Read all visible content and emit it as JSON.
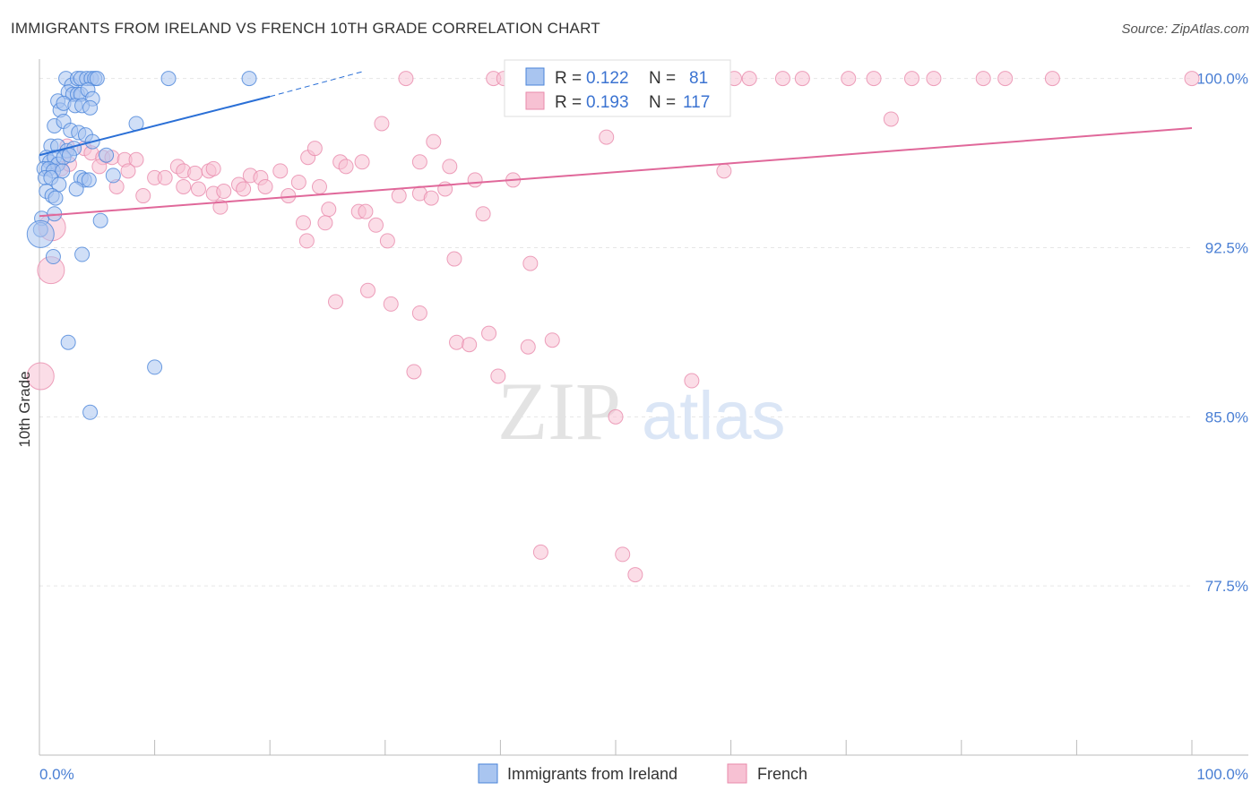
{
  "header": {
    "title": "IMMIGRANTS FROM IRELAND VS FRENCH 10TH GRADE CORRELATION CHART",
    "source": "Source: ZipAtlas.com"
  },
  "watermark": {
    "zip": "ZIP",
    "atlas": "atlas"
  },
  "legend": {
    "items": [
      {
        "r_label": "R =",
        "r_value": "0.122",
        "n_label": "N =",
        "n_value": "81"
      },
      {
        "r_label": "R =",
        "r_value": "0.193",
        "n_label": "N =",
        "n_value": "117"
      }
    ]
  },
  "bottom_legend": {
    "series1": "Immigrants from Ireland",
    "series2": "French"
  },
  "chart_data": {
    "type": "scatter",
    "title": "IMMIGRANTS FROM IRELAND VS FRENCH 10TH GRADE CORRELATION CHART",
    "xlabel": "",
    "ylabel": "10th Grade",
    "xlim": [
      0,
      100
    ],
    "ylim": [
      70,
      100.7
    ],
    "x_tick_labels": [
      {
        "value": 0,
        "label": "0.0%"
      },
      {
        "value": 100,
        "label": "100.0%"
      }
    ],
    "y_tick_labels": [
      {
        "value": 100,
        "label": "100.0%"
      },
      {
        "value": 92.5,
        "label": "92.5%"
      },
      {
        "value": 85,
        "label": "85.0%"
      },
      {
        "value": 77.5,
        "label": "77.5%"
      }
    ],
    "grid": true,
    "legend_placement": "top-center",
    "colors": {
      "ireland_fill": "#a9c5f0",
      "ireland_stroke": "#4a84d9",
      "ireland_line": "#2a6fd6",
      "french_fill": "#f7c1d3",
      "french_stroke": "#e98aab",
      "french_line": "#e0689a",
      "tick_label": "#4a7fd4"
    },
    "series": [
      {
        "name": "Immigrants from Ireland",
        "r": 0.122,
        "n": 81,
        "trend": {
          "x0": 0.0,
          "y0": 96.6,
          "x1": 20.0,
          "y1": 99.2,
          "dash_to_x": 28.0,
          "dash_to_y": 100.3
        },
        "points": [
          {
            "x": 2.3,
            "y": 100.0
          },
          {
            "x": 2.8,
            "y": 99.7
          },
          {
            "x": 3.3,
            "y": 100.0
          },
          {
            "x": 3.6,
            "y": 100.0
          },
          {
            "x": 4.1,
            "y": 100.0
          },
          {
            "x": 4.5,
            "y": 100.0
          },
          {
            "x": 4.8,
            "y": 100.0
          },
          {
            "x": 5.0,
            "y": 100.0
          },
          {
            "x": 11.2,
            "y": 100.0
          },
          {
            "x": 18.2,
            "y": 100.0
          },
          {
            "x": 1.6,
            "y": 99.0
          },
          {
            "x": 2.5,
            "y": 99.4
          },
          {
            "x": 2.9,
            "y": 99.3
          },
          {
            "x": 3.3,
            "y": 99.3
          },
          {
            "x": 3.6,
            "y": 99.3
          },
          {
            "x": 4.2,
            "y": 99.5
          },
          {
            "x": 4.6,
            "y": 99.1
          },
          {
            "x": 1.8,
            "y": 98.6
          },
          {
            "x": 2.1,
            "y": 98.9
          },
          {
            "x": 3.1,
            "y": 98.8
          },
          {
            "x": 3.7,
            "y": 98.8
          },
          {
            "x": 4.4,
            "y": 98.7
          },
          {
            "x": 1.3,
            "y": 97.9
          },
          {
            "x": 2.1,
            "y": 98.1
          },
          {
            "x": 2.7,
            "y": 97.7
          },
          {
            "x": 3.4,
            "y": 97.6
          },
          {
            "x": 4.0,
            "y": 97.5
          },
          {
            "x": 8.4,
            "y": 98.0
          },
          {
            "x": 1.0,
            "y": 97.0
          },
          {
            "x": 1.6,
            "y": 97.0
          },
          {
            "x": 2.4,
            "y": 96.8
          },
          {
            "x": 3.0,
            "y": 96.9
          },
          {
            "x": 4.6,
            "y": 97.2
          },
          {
            "x": 5.8,
            "y": 96.6
          },
          {
            "x": 0.6,
            "y": 96.5
          },
          {
            "x": 0.9,
            "y": 96.3
          },
          {
            "x": 1.3,
            "y": 96.5
          },
          {
            "x": 1.6,
            "y": 96.2
          },
          {
            "x": 2.1,
            "y": 96.5
          },
          {
            "x": 2.6,
            "y": 96.6
          },
          {
            "x": 0.4,
            "y": 96.0
          },
          {
            "x": 0.8,
            "y": 96.0
          },
          {
            "x": 1.2,
            "y": 95.9
          },
          {
            "x": 2.0,
            "y": 95.9
          },
          {
            "x": 0.5,
            "y": 95.6
          },
          {
            "x": 1.0,
            "y": 95.6
          },
          {
            "x": 1.7,
            "y": 95.3
          },
          {
            "x": 3.6,
            "y": 95.6
          },
          {
            "x": 3.9,
            "y": 95.5
          },
          {
            "x": 4.3,
            "y": 95.5
          },
          {
            "x": 6.4,
            "y": 95.7
          },
          {
            "x": 0.6,
            "y": 95.0
          },
          {
            "x": 1.1,
            "y": 94.8
          },
          {
            "x": 1.4,
            "y": 94.7
          },
          {
            "x": 3.2,
            "y": 95.1
          },
          {
            "x": 0.2,
            "y": 93.8
          },
          {
            "x": 1.3,
            "y": 94.0
          },
          {
            "x": 5.3,
            "y": 93.7
          },
          {
            "x": 0.1,
            "y": 93.3
          },
          {
            "x": 1.2,
            "y": 92.1
          },
          {
            "x": 3.7,
            "y": 92.2
          },
          {
            "x": 2.5,
            "y": 88.3
          },
          {
            "x": 10.0,
            "y": 87.2
          },
          {
            "x": 4.4,
            "y": 85.2
          }
        ],
        "large_points": [
          {
            "x": 0.1,
            "y": 93.1
          }
        ]
      },
      {
        "name": "French",
        "r": 0.193,
        "n": 117,
        "trend": {
          "x0": 0.0,
          "y0": 93.9,
          "x1": 100.0,
          "y1": 97.8
        },
        "points": [
          {
            "x": 31.8,
            "y": 100.0
          },
          {
            "x": 39.4,
            "y": 100.0
          },
          {
            "x": 40.3,
            "y": 100.0
          },
          {
            "x": 41.0,
            "y": 100.0
          },
          {
            "x": 41.7,
            "y": 100.0
          },
          {
            "x": 42.4,
            "y": 100.0
          },
          {
            "x": 43.1,
            "y": 100.0
          },
          {
            "x": 43.8,
            "y": 100.0
          },
          {
            "x": 44.5,
            "y": 100.0
          },
          {
            "x": 45.2,
            "y": 100.0
          },
          {
            "x": 45.9,
            "y": 100.0
          },
          {
            "x": 46.6,
            "y": 100.0
          },
          {
            "x": 47.3,
            "y": 100.0
          },
          {
            "x": 48.0,
            "y": 100.0
          },
          {
            "x": 48.7,
            "y": 100.0
          },
          {
            "x": 49.4,
            "y": 100.0
          },
          {
            "x": 50.1,
            "y": 100.0
          },
          {
            "x": 50.8,
            "y": 100.0
          },
          {
            "x": 51.5,
            "y": 100.0
          },
          {
            "x": 52.2,
            "y": 100.0
          },
          {
            "x": 52.9,
            "y": 100.0
          },
          {
            "x": 53.6,
            "y": 100.0
          },
          {
            "x": 54.3,
            "y": 100.0
          },
          {
            "x": 55.0,
            "y": 100.0
          },
          {
            "x": 55.7,
            "y": 100.0
          },
          {
            "x": 56.4,
            "y": 100.0
          },
          {
            "x": 57.1,
            "y": 100.0
          },
          {
            "x": 57.8,
            "y": 100.0
          },
          {
            "x": 58.5,
            "y": 100.0
          },
          {
            "x": 60.3,
            "y": 100.0
          },
          {
            "x": 61.6,
            "y": 100.0
          },
          {
            "x": 64.5,
            "y": 100.0
          },
          {
            "x": 66.2,
            "y": 100.0
          },
          {
            "x": 70.2,
            "y": 100.0
          },
          {
            "x": 72.4,
            "y": 100.0
          },
          {
            "x": 75.7,
            "y": 100.0
          },
          {
            "x": 77.6,
            "y": 100.0
          },
          {
            "x": 81.9,
            "y": 100.0
          },
          {
            "x": 83.8,
            "y": 100.0
          },
          {
            "x": 87.9,
            "y": 100.0
          },
          {
            "x": 100.0,
            "y": 100.0
          },
          {
            "x": 73.9,
            "y": 98.2
          },
          {
            "x": 29.7,
            "y": 98.0
          },
          {
            "x": 49.2,
            "y": 97.4
          },
          {
            "x": 34.2,
            "y": 97.2
          },
          {
            "x": 2.4,
            "y": 97.0
          },
          {
            "x": 3.9,
            "y": 96.9
          },
          {
            "x": 4.5,
            "y": 96.7
          },
          {
            "x": 5.5,
            "y": 96.5
          },
          {
            "x": 6.3,
            "y": 96.5
          },
          {
            "x": 7.4,
            "y": 96.4
          },
          {
            "x": 8.4,
            "y": 96.4
          },
          {
            "x": 23.3,
            "y": 96.5
          },
          {
            "x": 23.9,
            "y": 96.9
          },
          {
            "x": 26.1,
            "y": 96.3
          },
          {
            "x": 26.6,
            "y": 96.1
          },
          {
            "x": 28.0,
            "y": 96.3
          },
          {
            "x": 33.0,
            "y": 96.3
          },
          {
            "x": 35.6,
            "y": 96.1
          },
          {
            "x": 1.9,
            "y": 96.0
          },
          {
            "x": 2.6,
            "y": 96.2
          },
          {
            "x": 5.2,
            "y": 96.1
          },
          {
            "x": 7.7,
            "y": 95.9
          },
          {
            "x": 10.0,
            "y": 95.6
          },
          {
            "x": 10.9,
            "y": 95.6
          },
          {
            "x": 12.0,
            "y": 96.1
          },
          {
            "x": 12.5,
            "y": 95.9
          },
          {
            "x": 13.5,
            "y": 95.8
          },
          {
            "x": 14.7,
            "y": 95.9
          },
          {
            "x": 15.1,
            "y": 96.0
          },
          {
            "x": 17.3,
            "y": 95.3
          },
          {
            "x": 18.3,
            "y": 95.7
          },
          {
            "x": 19.2,
            "y": 95.6
          },
          {
            "x": 20.9,
            "y": 95.9
          },
          {
            "x": 22.5,
            "y": 95.4
          },
          {
            "x": 24.3,
            "y": 95.2
          },
          {
            "x": 37.8,
            "y": 95.5
          },
          {
            "x": 41.1,
            "y": 95.5
          },
          {
            "x": 59.4,
            "y": 95.9
          },
          {
            "x": 6.7,
            "y": 95.2
          },
          {
            "x": 9.0,
            "y": 94.8
          },
          {
            "x": 12.5,
            "y": 95.2
          },
          {
            "x": 13.8,
            "y": 95.1
          },
          {
            "x": 15.1,
            "y": 94.9
          },
          {
            "x": 16.0,
            "y": 95.0
          },
          {
            "x": 17.7,
            "y": 95.1
          },
          {
            "x": 19.6,
            "y": 95.2
          },
          {
            "x": 21.6,
            "y": 94.8
          },
          {
            "x": 31.2,
            "y": 94.8
          },
          {
            "x": 33.0,
            "y": 94.9
          },
          {
            "x": 34.0,
            "y": 94.7
          },
          {
            "x": 35.2,
            "y": 95.1
          },
          {
            "x": 15.7,
            "y": 94.3
          },
          {
            "x": 25.1,
            "y": 94.2
          },
          {
            "x": 27.7,
            "y": 94.1
          },
          {
            "x": 28.3,
            "y": 94.1
          },
          {
            "x": 38.5,
            "y": 94.0
          },
          {
            "x": 22.9,
            "y": 93.6
          },
          {
            "x": 24.8,
            "y": 93.6
          },
          {
            "x": 29.2,
            "y": 93.5
          },
          {
            "x": 23.2,
            "y": 92.8
          },
          {
            "x": 30.2,
            "y": 92.8
          },
          {
            "x": 36.0,
            "y": 92.0
          },
          {
            "x": 42.6,
            "y": 91.8
          },
          {
            "x": 28.5,
            "y": 90.6
          },
          {
            "x": 25.7,
            "y": 90.1
          },
          {
            "x": 30.5,
            "y": 90.0
          },
          {
            "x": 33.0,
            "y": 89.6
          },
          {
            "x": 39.0,
            "y": 88.7
          },
          {
            "x": 36.2,
            "y": 88.3
          },
          {
            "x": 37.3,
            "y": 88.2
          },
          {
            "x": 44.5,
            "y": 88.4
          },
          {
            "x": 42.4,
            "y": 88.1
          },
          {
            "x": 32.5,
            "y": 87.0
          },
          {
            "x": 39.8,
            "y": 86.8
          },
          {
            "x": 56.6,
            "y": 86.6
          },
          {
            "x": 50.0,
            "y": 85.0
          },
          {
            "x": 43.5,
            "y": 79.0
          },
          {
            "x": 50.6,
            "y": 78.9
          },
          {
            "x": 51.7,
            "y": 78.0
          }
        ],
        "large_points": [
          {
            "x": 1.1,
            "y": 93.4
          },
          {
            "x": 1.0,
            "y": 91.5
          },
          {
            "x": 0.1,
            "y": 86.8
          }
        ]
      }
    ]
  }
}
